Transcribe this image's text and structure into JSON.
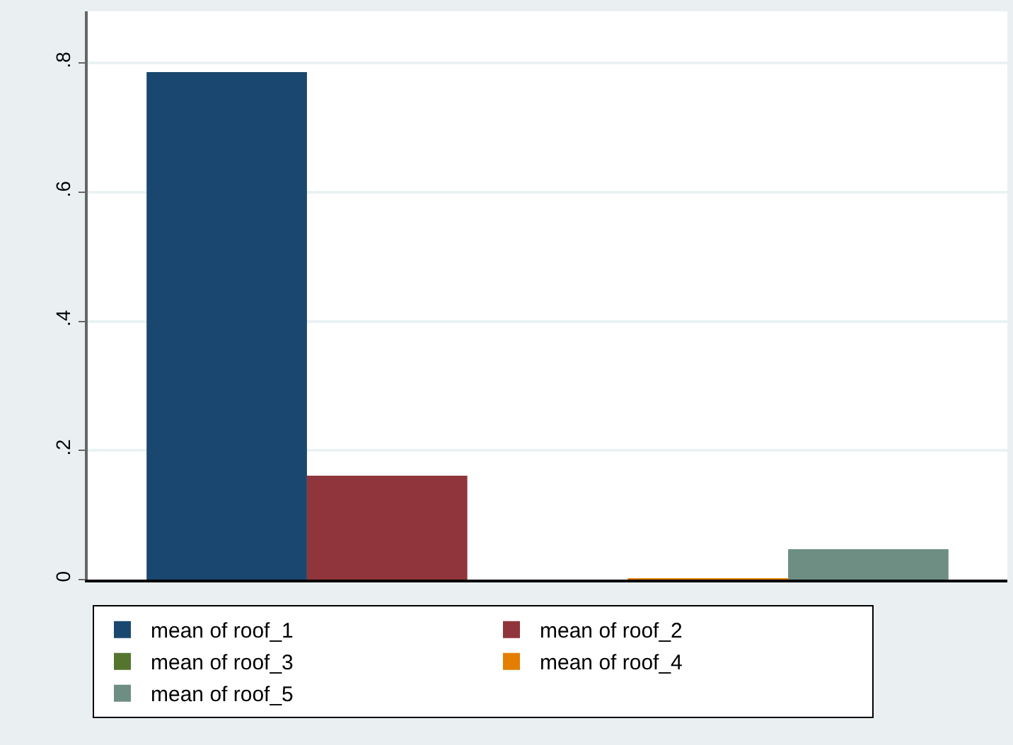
{
  "chart_data": {
    "type": "bar",
    "categories": [
      null
    ],
    "series": [
      {
        "name": "mean of roof_1",
        "color": "#1a476f",
        "values": [
          0.786
        ]
      },
      {
        "name": "mean of roof_2",
        "color": "#90353b",
        "values": [
          0.161
        ]
      },
      {
        "name": "mean of roof_3",
        "color": "#55752f",
        "values": [
          0
        ]
      },
      {
        "name": "mean of roof_4",
        "color": "#e37e00",
        "values": [
          0.002
        ]
      },
      {
        "name": "mean of roof_5",
        "color": "#6e8e84",
        "values": [
          0.047
        ]
      }
    ],
    "ylim": [
      0,
      0.88
    ],
    "yticks": [
      0,
      {
        "value": 0.2,
        "label": ".2"
      },
      {
        "value": 0.4,
        "label": ".4"
      },
      {
        "value": 0.6,
        "label": ".6"
      },
      {
        "value": 0.8,
        "label": ".8"
      }
    ],
    "grid": "y",
    "legend": "bottom"
  }
}
